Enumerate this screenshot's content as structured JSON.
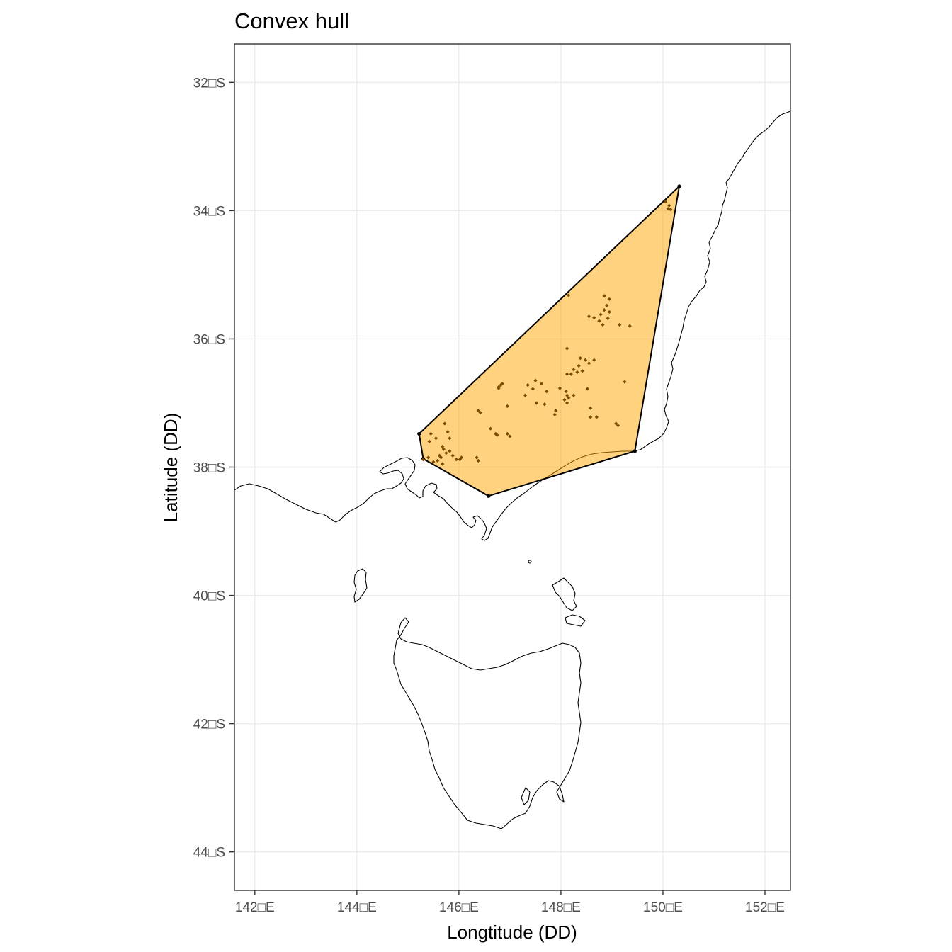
{
  "chart_data": {
    "type": "scatter",
    "title": "Convex hull",
    "xlabel": "Longtitude (DD)",
    "ylabel": "Latitude (DD)",
    "xlim": [
      141.6,
      152.5
    ],
    "ylim": [
      -44.6,
      -31.4
    ],
    "x_ticks": [
      {
        "value": 142,
        "label": "142□E"
      },
      {
        "value": 144,
        "label": "144□E"
      },
      {
        "value": 146,
        "label": "146□E"
      },
      {
        "value": 148,
        "label": "148□E"
      },
      {
        "value": 150,
        "label": "150□E"
      },
      {
        "value": 152,
        "label": "152□E"
      }
    ],
    "y_ticks": [
      {
        "value": -32,
        "label": "32□S"
      },
      {
        "value": -34,
        "label": "34□S"
      },
      {
        "value": -36,
        "label": "36□S"
      },
      {
        "value": -38,
        "label": "38□S"
      },
      {
        "value": -40,
        "label": "40□S"
      },
      {
        "value": -42,
        "label": "42□S"
      },
      {
        "value": -44,
        "label": "44□S"
      }
    ],
    "grid": true,
    "colors": {
      "hull_fill": "#ffa500",
      "hull_stroke": "#000000",
      "points": "#7a4a00",
      "coastline": "#000000"
    },
    "hull": [
      [
        145.22,
        -37.48
      ],
      [
        150.32,
        -33.62
      ],
      [
        149.45,
        -37.75
      ],
      [
        146.58,
        -38.45
      ],
      [
        145.3,
        -37.87
      ]
    ],
    "points": [
      [
        150.05,
        -33.86
      ],
      [
        150.1,
        -33.97
      ],
      [
        150.15,
        -33.98
      ],
      [
        150.12,
        -33.92
      ],
      [
        148.15,
        -35.32
      ],
      [
        148.85,
        -35.33
      ],
      [
        148.95,
        -35.38
      ],
      [
        148.9,
        -35.48
      ],
      [
        148.85,
        -35.55
      ],
      [
        148.95,
        -35.58
      ],
      [
        148.78,
        -35.62
      ],
      [
        148.92,
        -35.68
      ],
      [
        148.65,
        -35.67
      ],
      [
        148.75,
        -35.72
      ],
      [
        148.82,
        -35.78
      ],
      [
        149.15,
        -35.78
      ],
      [
        149.35,
        -35.8
      ],
      [
        148.55,
        -35.65
      ],
      [
        148.12,
        -36.15
      ],
      [
        148.38,
        -36.3
      ],
      [
        148.48,
        -36.33
      ],
      [
        148.55,
        -36.38
      ],
      [
        148.35,
        -36.42
      ],
      [
        148.42,
        -36.5
      ],
      [
        148.25,
        -36.48
      ],
      [
        148.32,
        -36.52
      ],
      [
        148.2,
        -36.55
      ],
      [
        148.12,
        -36.55
      ],
      [
        148.65,
        -36.33
      ],
      [
        149.25,
        -36.67
      ],
      [
        146.82,
        -36.72
      ],
      [
        146.78,
        -36.75
      ],
      [
        146.85,
        -36.7
      ],
      [
        146.78,
        -36.77
      ],
      [
        147.35,
        -36.72
      ],
      [
        147.5,
        -36.65
      ],
      [
        147.62,
        -36.7
      ],
      [
        147.45,
        -36.78
      ],
      [
        147.72,
        -36.82
      ],
      [
        147.98,
        -36.77
      ],
      [
        148.1,
        -36.82
      ],
      [
        148.12,
        -36.88
      ],
      [
        148.15,
        -36.92
      ],
      [
        148.07,
        -36.95
      ],
      [
        148.25,
        -36.88
      ],
      [
        148.12,
        -37.0
      ],
      [
        148.52,
        -36.78
      ],
      [
        147.3,
        -36.88
      ],
      [
        147.52,
        -37.0
      ],
      [
        147.68,
        -37.02
      ],
      [
        147.88,
        -37.18
      ],
      [
        147.9,
        -37.12
      ],
      [
        148.58,
        -37.08
      ],
      [
        146.95,
        -37.05
      ],
      [
        146.38,
        -37.12
      ],
      [
        146.42,
        -37.15
      ],
      [
        146.62,
        -37.4
      ],
      [
        148.58,
        -37.22
      ],
      [
        148.7,
        -37.22
      ],
      [
        149.08,
        -37.32
      ],
      [
        149.12,
        -37.35
      ],
      [
        146.72,
        -37.48
      ],
      [
        146.75,
        -37.5
      ],
      [
        146.95,
        -37.48
      ],
      [
        147.0,
        -37.52
      ],
      [
        145.45,
        -37.48
      ],
      [
        145.55,
        -37.55
      ],
      [
        145.42,
        -37.6
      ],
      [
        145.72,
        -37.32
      ],
      [
        145.78,
        -37.45
      ],
      [
        145.82,
        -37.55
      ],
      [
        145.68,
        -37.68
      ],
      [
        145.7,
        -37.72
      ],
      [
        145.75,
        -37.78
      ],
      [
        145.82,
        -37.75
      ],
      [
        145.62,
        -37.82
      ],
      [
        145.65,
        -37.85
      ],
      [
        145.88,
        -37.82
      ],
      [
        145.95,
        -37.88
      ],
      [
        145.58,
        -37.9
      ],
      [
        145.68,
        -37.95
      ],
      [
        146.02,
        -37.88
      ],
      [
        146.05,
        -37.85
      ],
      [
        146.35,
        -37.85
      ],
      [
        146.38,
        -37.9
      ],
      [
        145.4,
        -37.85
      ],
      [
        145.3,
        -37.88
      ],
      [
        145.5,
        -37.92
      ]
    ]
  }
}
